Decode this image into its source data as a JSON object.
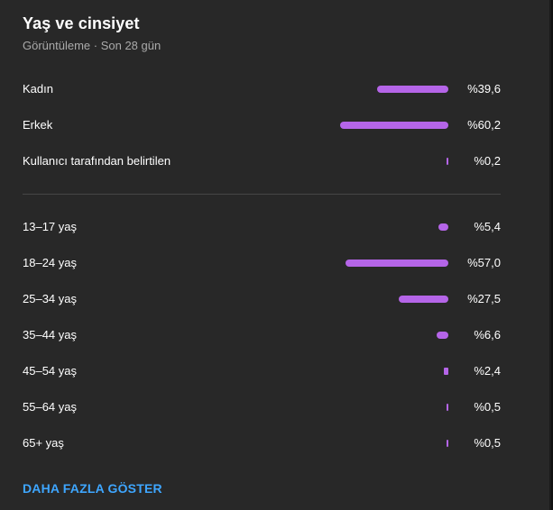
{
  "card": {
    "title": "Yaş ve cinsiyet",
    "subtitle": "Görüntüleme · Son 28 gün"
  },
  "gender": [
    {
      "label": "Kadın",
      "value": "%39,6",
      "percent": 39.6
    },
    {
      "label": "Erkek",
      "value": "%60,2",
      "percent": 60.2
    },
    {
      "label": "Kullanıcı tarafından belirtilen",
      "value": "%0,2",
      "percent": 0.2
    }
  ],
  "age": [
    {
      "label": "13–17 yaş",
      "value": "%5,4",
      "percent": 5.4
    },
    {
      "label": "18–24 yaş",
      "value": "%57,0",
      "percent": 57.0
    },
    {
      "label": "25–34 yaş",
      "value": "%27,5",
      "percent": 27.5
    },
    {
      "label": "35–44 yaş",
      "value": "%6,6",
      "percent": 6.6
    },
    {
      "label": "45–54 yaş",
      "value": "%2,4",
      "percent": 2.4
    },
    {
      "label": "55–64 yaş",
      "value": "%0,5",
      "percent": 0.5
    },
    {
      "label": "65+ yaş",
      "value": "%0,5",
      "percent": 0.5
    }
  ],
  "footer": {
    "more_label": "DAHA FAZLA GÖSTER"
  },
  "colors": {
    "bar": "#b565e8",
    "link": "#3ea6ff",
    "card_bg": "#282828"
  }
}
